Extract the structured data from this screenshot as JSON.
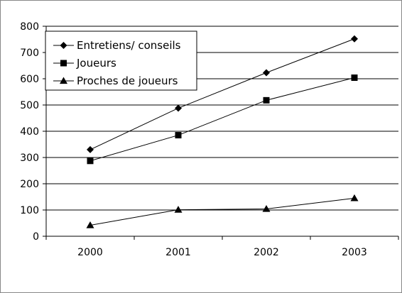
{
  "chart_data": {
    "type": "line",
    "categories": [
      "2000",
      "2001",
      "2002",
      "2003"
    ],
    "ylim": [
      0,
      800
    ],
    "yticks": [
      0,
      100,
      200,
      300,
      400,
      500,
      600,
      700,
      800
    ],
    "grid": true,
    "legend_position": "top-left",
    "series": [
      {
        "name": "Entretiens/ conseils",
        "marker": "diamond",
        "values": [
          330,
          488,
          623,
          752
        ]
      },
      {
        "name": "Joueurs",
        "marker": "square",
        "values": [
          287,
          385,
          518,
          604
        ]
      },
      {
        "name": "Proches de joueurs",
        "marker": "triangle",
        "values": [
          42,
          101,
          104,
          145
        ]
      }
    ]
  }
}
